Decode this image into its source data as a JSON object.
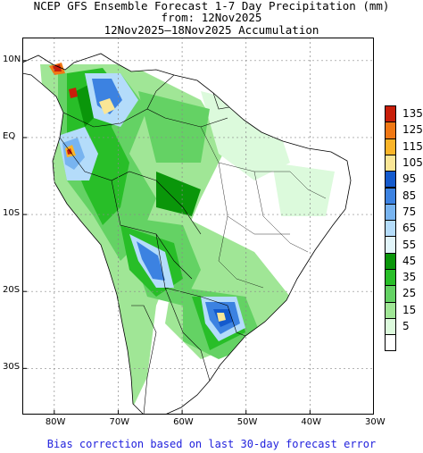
{
  "title": {
    "line1": "NCEP GFS Ensemble Forecast 1-7 Day Precipitation (mm)",
    "line2": "from: 12Nov2025",
    "line3": "12Nov2025—18Nov2025 Accumulation"
  },
  "footer": "Bias correction based on last 30-day forecast error",
  "map": {
    "lon_ticks": [
      {
        "lon": -80,
        "label": "80W"
      },
      {
        "lon": -70,
        "label": "70W"
      },
      {
        "lon": -60,
        "label": "60W"
      },
      {
        "lon": -50,
        "label": "50W"
      },
      {
        "lon": -40,
        "label": "40W"
      },
      {
        "lon": -30,
        "label": "30W"
      }
    ],
    "lat_ticks": [
      {
        "lat": 10,
        "label": "10N"
      },
      {
        "lat": 0,
        "label": "EQ"
      },
      {
        "lat": -10,
        "label": "10S"
      },
      {
        "lat": -20,
        "label": "20S"
      },
      {
        "lat": -30,
        "label": "30S"
      }
    ],
    "lon_range": [
      -85,
      -30
    ],
    "lat_range": [
      -36,
      13
    ]
  },
  "legend": {
    "levels": [
      {
        "label": "135",
        "color": "#c81e0a"
      },
      {
        "label": "125",
        "color": "#f07814"
      },
      {
        "label": "115",
        "color": "#fab428"
      },
      {
        "label": "105",
        "color": "#fae696"
      },
      {
        "label": "95",
        "color": "#145acd"
      },
      {
        "label": "85",
        "color": "#3c82e1"
      },
      {
        "label": "75",
        "color": "#78b4f0"
      },
      {
        "label": "65",
        "color": "#b4dcfa"
      },
      {
        "label": "55",
        "color": "#e1f5fa"
      },
      {
        "label": "45",
        "color": "#0a960a"
      },
      {
        "label": "35",
        "color": "#28be28"
      },
      {
        "label": "25",
        "color": "#64d264"
      },
      {
        "label": "15",
        "color": "#a0e696"
      },
      {
        "label": "5",
        "color": "#dcfadc"
      },
      {
        "label": "",
        "color": "#ffffff"
      }
    ]
  }
}
